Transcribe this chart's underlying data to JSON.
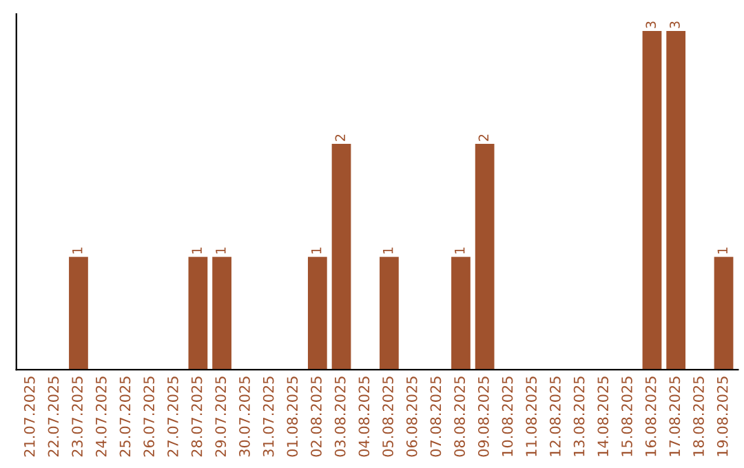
{
  "chart_data": {
    "type": "bar",
    "categories": [
      "21.07.2025",
      "22.07.2025",
      "23.07.2025",
      "24.07.2025",
      "25.07.2025",
      "26.07.2025",
      "27.07.2025",
      "28.07.2025",
      "29.07.2025",
      "30.07.2025",
      "31.07.2025",
      "01.08.2025",
      "02.08.2025",
      "03.08.2025",
      "04.08.2025",
      "05.08.2025",
      "06.08.2025",
      "07.08.2025",
      "08.08.2025",
      "09.08.2025",
      "10.08.2025",
      "11.08.2025",
      "12.08.2025",
      "13.08.2025",
      "14.08.2025",
      "15.08.2025",
      "16.08.2025",
      "17.08.2025",
      "18.08.2025",
      "19.08.2025"
    ],
    "values": [
      0,
      0,
      1,
      0,
      0,
      0,
      0,
      1,
      1,
      0,
      0,
      0,
      1,
      2,
      0,
      1,
      0,
      0,
      1,
      2,
      0,
      0,
      0,
      0,
      0,
      0,
      3,
      3,
      0,
      1
    ],
    "value_labels": [
      null,
      null,
      "1",
      null,
      null,
      null,
      null,
      "1",
      "1",
      null,
      null,
      null,
      "1",
      "2",
      null,
      "1",
      null,
      null,
      "1",
      "2",
      null,
      null,
      null,
      null,
      null,
      null,
      "3",
      "3",
      null,
      "1"
    ],
    "color": "#a0522d",
    "grid": false,
    "legend": false
  }
}
